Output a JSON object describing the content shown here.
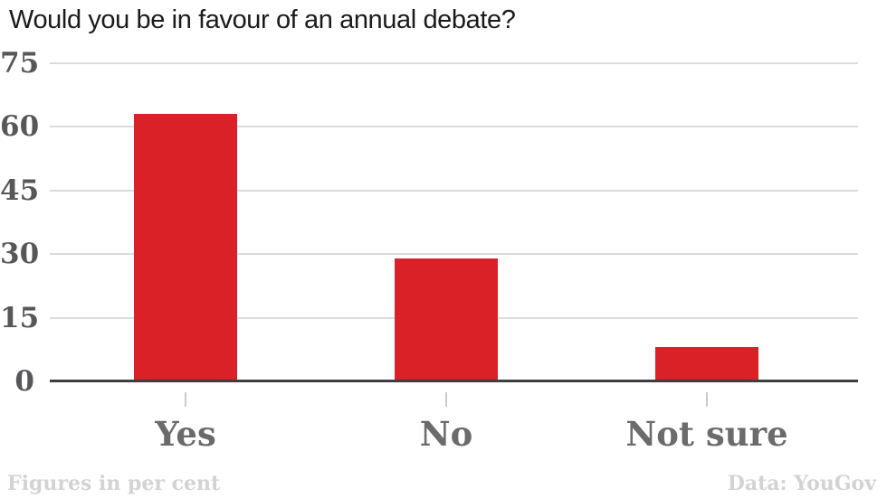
{
  "chart_data": {
    "type": "bar",
    "title": "Would you be in favour of an annual debate?",
    "categories": [
      "Yes",
      "No",
      "Not sure"
    ],
    "values": [
      63,
      29,
      8
    ],
    "xlabel": "",
    "ylabel": "",
    "ylim": [
      0,
      75
    ],
    "yticks": [
      0,
      15,
      30,
      45,
      60,
      75
    ],
    "grid": true,
    "legend": false,
    "bar_color": "#da2128"
  },
  "footer": {
    "left": "Figures in per cent",
    "right": "Data: YouGov"
  },
  "colors": {
    "bar": "#da2128",
    "title": "#1b1b1b",
    "y_axis_label": "#57575a",
    "category_label": "#6b6b6d",
    "gridline": "#dbdbdb",
    "baseline": "#3e3e40",
    "tick": "#cbcbcb",
    "footer_text": "#d3d3d3",
    "background": "#ffffff"
  }
}
